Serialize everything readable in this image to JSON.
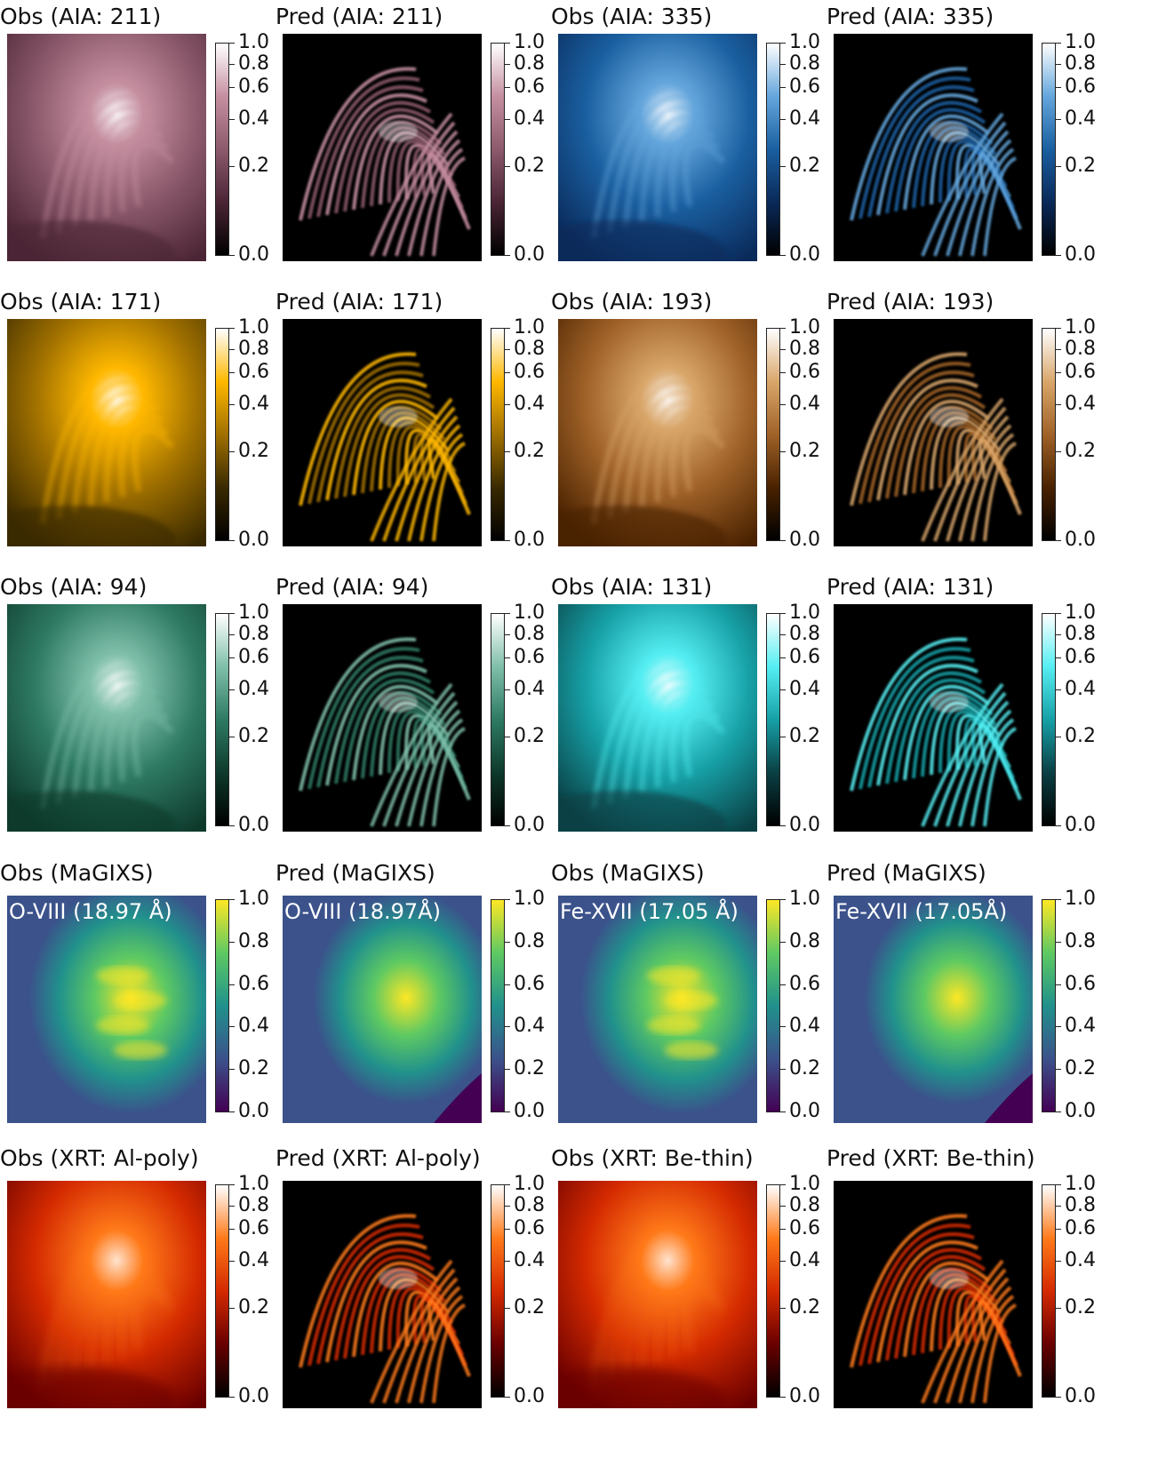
{
  "colormaps": {
    "sdoaia211": [
      "#000000",
      "#4b2535",
      "#8c5a6c",
      "#c58fa0",
      "#ffffff"
    ],
    "sdoaia335": [
      "#000000",
      "#0a2a5a",
      "#1a5fa0",
      "#64a6dc",
      "#ffffff"
    ],
    "sdoaia171": [
      "#000000",
      "#3a2a00",
      "#a07000",
      "#ffb800",
      "#ffffff"
    ],
    "sdoaia193": [
      "#000000",
      "#4a2200",
      "#a06228",
      "#d9a66a",
      "#ffffff"
    ],
    "sdoaia94": [
      "#000000",
      "#0e3a2c",
      "#2e7a63",
      "#7fbfaa",
      "#ffffff"
    ],
    "sdoaia131": [
      "#000000",
      "#0a4044",
      "#16a0a6",
      "#55eef2",
      "#ffffff"
    ],
    "viridis": [
      "#440154",
      "#3b528b",
      "#21918c",
      "#5ec962",
      "#fde725"
    ],
    "hinodexrt": [
      "#000000",
      "#6a0000",
      "#d42a00",
      "#ff7a1a",
      "#ffffff"
    ]
  },
  "panels": [
    {
      "title": "Obs (AIA: 211)",
      "cmap": "sdoaia211",
      "kind": "obs",
      "line": "",
      "ticks": [
        "1.0",
        "0.8",
        "0.6",
        "0.4",
        "0.2",
        "0.0"
      ],
      "tickPos": [
        0.0,
        0.1,
        0.21,
        0.36,
        0.58,
        1.0
      ]
    },
    {
      "title": "Pred (AIA: 211)",
      "cmap": "sdoaia211",
      "kind": "pred",
      "line": "",
      "ticks": [
        "1.0",
        "0.8",
        "0.6",
        "0.4",
        "0.2",
        "0.0"
      ],
      "tickPos": [
        0.0,
        0.1,
        0.21,
        0.36,
        0.58,
        1.0
      ]
    },
    {
      "title": "Obs (AIA: 335)",
      "cmap": "sdoaia335",
      "kind": "obs",
      "line": "",
      "ticks": [
        "1.0",
        "0.8",
        "0.6",
        "0.4",
        "0.2",
        "0.0"
      ],
      "tickPos": [
        0.0,
        0.1,
        0.21,
        0.36,
        0.58,
        1.0
      ]
    },
    {
      "title": "Pred (AIA: 335)",
      "cmap": "sdoaia335",
      "kind": "pred",
      "line": "",
      "ticks": [
        "1.0",
        "0.8",
        "0.6",
        "0.4",
        "0.2",
        "0.0"
      ],
      "tickPos": [
        0.0,
        0.1,
        0.21,
        0.36,
        0.58,
        1.0
      ]
    },
    {
      "title": "Obs (AIA: 171)",
      "cmap": "sdoaia171",
      "kind": "obs",
      "line": "",
      "ticks": [
        "1.0",
        "0.8",
        "0.6",
        "0.4",
        "0.2",
        "0.0"
      ],
      "tickPos": [
        0.0,
        0.1,
        0.21,
        0.36,
        0.58,
        1.0
      ]
    },
    {
      "title": "Pred (AIA: 171)",
      "cmap": "sdoaia171",
      "kind": "pred",
      "line": "",
      "ticks": [
        "1.0",
        "0.8",
        "0.6",
        "0.4",
        "0.2",
        "0.0"
      ],
      "tickPos": [
        0.0,
        0.1,
        0.21,
        0.36,
        0.58,
        1.0
      ]
    },
    {
      "title": "Obs (AIA: 193)",
      "cmap": "sdoaia193",
      "kind": "obs",
      "line": "",
      "ticks": [
        "1.0",
        "0.8",
        "0.6",
        "0.4",
        "0.2",
        "0.0"
      ],
      "tickPos": [
        0.0,
        0.1,
        0.21,
        0.36,
        0.58,
        1.0
      ]
    },
    {
      "title": "Pred (AIA: 193)",
      "cmap": "sdoaia193",
      "kind": "pred",
      "line": "",
      "ticks": [
        "1.0",
        "0.8",
        "0.6",
        "0.4",
        "0.2",
        "0.0"
      ],
      "tickPos": [
        0.0,
        0.1,
        0.21,
        0.36,
        0.58,
        1.0
      ]
    },
    {
      "title": "Obs (AIA: 94)",
      "cmap": "sdoaia94",
      "kind": "obs",
      "line": "",
      "ticks": [
        "1.0",
        "0.8",
        "0.6",
        "0.4",
        "0.2",
        "0.0"
      ],
      "tickPos": [
        0.0,
        0.1,
        0.21,
        0.36,
        0.58,
        1.0
      ]
    },
    {
      "title": "Pred (AIA: 94)",
      "cmap": "sdoaia94",
      "kind": "pred",
      "line": "",
      "ticks": [
        "1.0",
        "0.8",
        "0.6",
        "0.4",
        "0.2",
        "0.0"
      ],
      "tickPos": [
        0.0,
        0.1,
        0.21,
        0.36,
        0.58,
        1.0
      ]
    },
    {
      "title": "Obs (AIA: 131)",
      "cmap": "sdoaia131",
      "kind": "obs",
      "line": "",
      "ticks": [
        "1.0",
        "0.8",
        "0.6",
        "0.4",
        "0.2",
        "0.0"
      ],
      "tickPos": [
        0.0,
        0.1,
        0.21,
        0.36,
        0.58,
        1.0
      ]
    },
    {
      "title": "Pred (AIA: 131)",
      "cmap": "sdoaia131",
      "kind": "pred",
      "line": "",
      "ticks": [
        "1.0",
        "0.8",
        "0.6",
        "0.4",
        "0.2",
        "0.0"
      ],
      "tickPos": [
        0.0,
        0.1,
        0.21,
        0.36,
        0.58,
        1.0
      ]
    },
    {
      "title": "Obs (MaGIXS)",
      "cmap": "viridis",
      "kind": "obs-mag",
      "line": "O-VIII (18.97 Å)",
      "ticks": [
        "1.0",
        "0.8",
        "0.6",
        "0.4",
        "0.2",
        "0.0"
      ],
      "tickPos": [
        0.0,
        0.2,
        0.4,
        0.6,
        0.8,
        1.0
      ]
    },
    {
      "title": "Pred (MaGIXS)",
      "cmap": "viridis",
      "kind": "pred-mag",
      "line": "O-VIII (18.97Å)",
      "ticks": [
        "1.0",
        "0.8",
        "0.6",
        "0.4",
        "0.2",
        "0.0"
      ],
      "tickPos": [
        0.0,
        0.2,
        0.4,
        0.6,
        0.8,
        1.0
      ]
    },
    {
      "title": "Obs (MaGIXS)",
      "cmap": "viridis",
      "kind": "obs-mag",
      "line": "Fe-XVII (17.05 Å)",
      "ticks": [
        "1.0",
        "0.8",
        "0.6",
        "0.4",
        "0.2",
        "0.0"
      ],
      "tickPos": [
        0.0,
        0.2,
        0.4,
        0.6,
        0.8,
        1.0
      ]
    },
    {
      "title": "Pred (MaGIXS)",
      "cmap": "viridis",
      "kind": "pred-mag",
      "line": "Fe-XVII (17.05Å)",
      "ticks": [
        "1.0",
        "0.8",
        "0.6",
        "0.4",
        "0.2",
        "0.0"
      ],
      "tickPos": [
        0.0,
        0.2,
        0.4,
        0.6,
        0.8,
        1.0
      ]
    },
    {
      "title": "Obs (XRT: Al-poly)",
      "cmap": "hinodexrt",
      "kind": "obs-xrt",
      "line": "",
      "ticks": [
        "1.0",
        "0.8",
        "0.6",
        "0.4",
        "0.2",
        "0.0"
      ],
      "tickPos": [
        0.0,
        0.1,
        0.21,
        0.36,
        0.58,
        1.0
      ]
    },
    {
      "title": "Pred (XRT: Al-poly)",
      "cmap": "hinodexrt",
      "kind": "pred",
      "line": "",
      "ticks": [
        "1.0",
        "0.8",
        "0.6",
        "0.4",
        "0.2",
        "0.0"
      ],
      "tickPos": [
        0.0,
        0.1,
        0.21,
        0.36,
        0.58,
        1.0
      ]
    },
    {
      "title": "Obs (XRT: Be-thin)",
      "cmap": "hinodexrt",
      "kind": "obs-xrt",
      "line": "",
      "ticks": [
        "1.0",
        "0.8",
        "0.6",
        "0.4",
        "0.2",
        "0.0"
      ],
      "tickPos": [
        0.0,
        0.1,
        0.21,
        0.36,
        0.58,
        1.0
      ]
    },
    {
      "title": "Pred (XRT: Be-thin)",
      "cmap": "hinodexrt",
      "kind": "pred",
      "line": "",
      "ticks": [
        "1.0",
        "0.8",
        "0.6",
        "0.4",
        "0.2",
        "0.0"
      ],
      "tickPos": [
        0.0,
        0.1,
        0.21,
        0.36,
        0.58,
        1.0
      ]
    }
  ]
}
